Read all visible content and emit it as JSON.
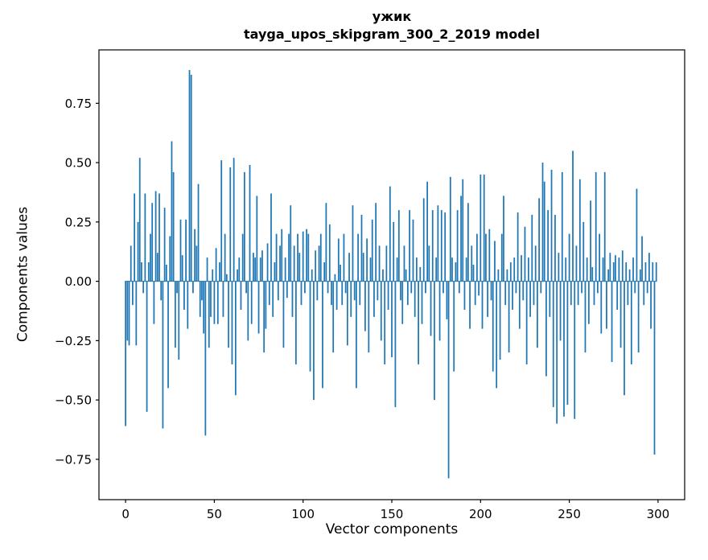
{
  "figure": {
    "title": "ужик",
    "subtitle": "tayga_upos_skipgram_300_2_2019 model",
    "xlabel": "Vector components",
    "ylabel": "Components values"
  },
  "chart_data": {
    "type": "bar",
    "title": "ужик",
    "subtitle": "tayga_upos_skipgram_300_2_2019 model",
    "xlabel": "Vector components",
    "ylabel": "Components values",
    "x_description": "component index 0–299",
    "bar_color": "#1f77b4",
    "axis_color": "#000000",
    "grid": false,
    "legend": false,
    "xlim": [
      -15,
      315
    ],
    "ylim": [
      -0.92,
      0.975
    ],
    "x_ticks": [
      0,
      50,
      100,
      150,
      200,
      250,
      300
    ],
    "y_ticks": [
      -0.75,
      -0.5,
      -0.25,
      0,
      0.25,
      0.5,
      0.75
    ],
    "values": [
      -0.61,
      -0.25,
      -0.27,
      0.15,
      -0.1,
      0.37,
      -0.27,
      0.25,
      0.52,
      0.08,
      -0.05,
      0.37,
      -0.55,
      0.08,
      0.2,
      0.33,
      -0.18,
      0.38,
      0.12,
      0.37,
      -0.08,
      -0.62,
      0.31,
      0.07,
      -0.45,
      0.19,
      0.59,
      0.46,
      -0.28,
      -0.05,
      -0.33,
      0.26,
      0.11,
      -0.12,
      0.26,
      -0.2,
      0.89,
      0.87,
      -0.05,
      0.22,
      0.15,
      0.41,
      -0.15,
      -0.08,
      -0.22,
      -0.65,
      0.1,
      -0.28,
      -0.15,
      0.05,
      -0.18,
      0.14,
      -0.18,
      0.08,
      0.51,
      -0.15,
      0.2,
      0.03,
      -0.28,
      0.48,
      -0.35,
      0.52,
      -0.48,
      0.05,
      0.1,
      -0.12,
      0.2,
      0.46,
      -0.05,
      -0.25,
      0.49,
      -0.18,
      0.12,
      0.1,
      0.36,
      -0.22,
      0.1,
      0.13,
      -0.3,
      -0.2,
      0.16,
      -0.1,
      0.37,
      -0.15,
      0.08,
      0.2,
      -0.08,
      0.15,
      0.22,
      -0.28,
      0.1,
      -0.07,
      0.2,
      0.32,
      -0.15,
      0.15,
      -0.35,
      0.2,
      0.12,
      -0.1,
      0.21,
      -0.05,
      0.22,
      0.2,
      -0.38,
      0.05,
      -0.5,
      0.13,
      -0.08,
      0.15,
      0.2,
      -0.45,
      0.08,
      0.33,
      -0.05,
      0.24,
      -0.1,
      -0.3,
      0.03,
      -0.12,
      0.18,
      0.07,
      -0.1,
      0.2,
      -0.05,
      -0.27,
      0.12,
      -0.15,
      0.32,
      -0.08,
      -0.45,
      0.2,
      -0.1,
      0.28,
      0.12,
      -0.21,
      0.18,
      -0.3,
      0.1,
      0.26,
      -0.15,
      0.33,
      -0.08,
      0.15,
      -0.25,
      0.05,
      -0.35,
      0.15,
      -0.12,
      0.4,
      -0.32,
      0.25,
      -0.53,
      0.1,
      0.3,
      -0.08,
      -0.18,
      0.15,
      0.05,
      -0.1,
      0.3,
      -0.05,
      0.26,
      -0.15,
      0.1,
      -0.35,
      0.06,
      -0.18,
      0.35,
      -0.05,
      0.42,
      0.15,
      -0.23,
      0.3,
      -0.5,
      0.1,
      0.32,
      -0.25,
      0.3,
      -0.05,
      0.29,
      -0.16,
      -0.83,
      0.44,
      0.1,
      -0.38,
      0.08,
      0.3,
      -0.05,
      0.36,
      0.43,
      -0.12,
      0.1,
      0.33,
      -0.2,
      0.15,
      0.07,
      -0.1,
      0.2,
      -0.06,
      0.45,
      -0.2,
      0.45,
      0.2,
      -0.15,
      0.22,
      -0.08,
      -0.38,
      0.17,
      -0.45,
      0.05,
      -0.33,
      0.2,
      0.36,
      -0.1,
      0.05,
      -0.3,
      0.08,
      -0.12,
      0.1,
      -0.05,
      0.29,
      -0.2,
      0.11,
      -0.08,
      0.23,
      -0.35,
      0.1,
      -0.15,
      0.28,
      -0.1,
      0.15,
      -0.28,
      0.35,
      -0.05,
      0.5,
      0.42,
      -0.4,
      0.3,
      -0.15,
      0.47,
      -0.53,
      0.28,
      -0.6,
      0.12,
      -0.25,
      0.46,
      -0.57,
      0.1,
      -0.52,
      0.2,
      -0.1,
      0.55,
      -0.58,
      0.15,
      -0.1,
      0.43,
      -0.05,
      0.25,
      -0.3,
      0.1,
      -0.18,
      0.34,
      0.06,
      -0.1,
      0.46,
      -0.05,
      0.2,
      -0.22,
      0.1,
      0.46,
      -0.2,
      0.05,
      0.12,
      -0.34,
      0.08,
      0.11,
      -0.12,
      0.1,
      -0.28,
      0.13,
      -0.48,
      0.08,
      -0.1,
      0.05,
      -0.35,
      0.1,
      -0.05,
      0.39,
      -0.3,
      0.05,
      0.19,
      -0.1,
      0.08,
      -0.05,
      0.12,
      -0.2,
      0.08,
      -0.73,
      0.08
    ]
  }
}
